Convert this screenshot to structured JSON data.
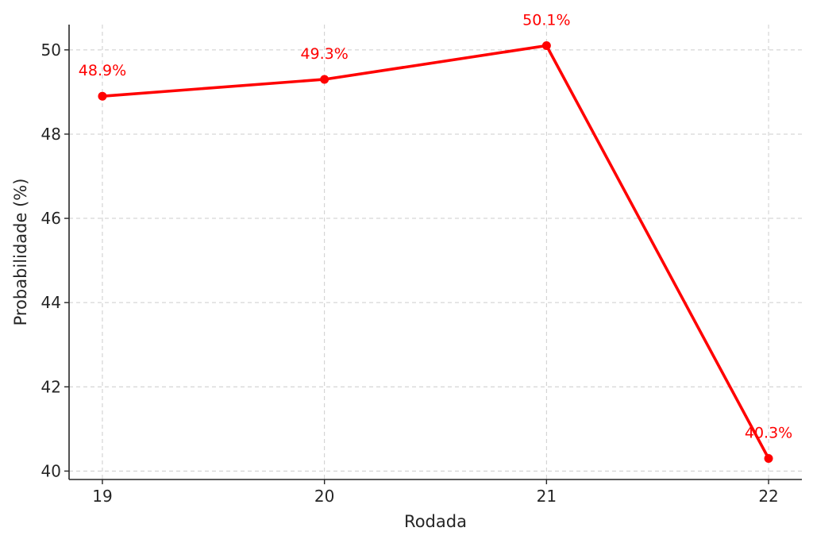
{
  "chart_data": {
    "type": "line",
    "title": "",
    "xlabel": "Rodada",
    "ylabel": "Probabilidade (%)",
    "x": [
      19,
      20,
      21,
      22
    ],
    "x_tick_labels": [
      "19",
      "20",
      "21",
      "22"
    ],
    "xlim": [
      18.85,
      22.15
    ],
    "ylim": [
      39.8,
      50.6
    ],
    "y_ticks": [
      40,
      42,
      44,
      46,
      48,
      50
    ],
    "y_tick_labels": [
      "40",
      "42",
      "44",
      "46",
      "48",
      "50"
    ],
    "grid": true,
    "series": [
      {
        "values": [
          48.9,
          49.3,
          50.1,
          40.3
        ],
        "data_labels": [
          "48.9%",
          "49.3%",
          "50.1%",
          "40.3%"
        ],
        "color": "#ff0000",
        "marker": "circle"
      }
    ]
  }
}
